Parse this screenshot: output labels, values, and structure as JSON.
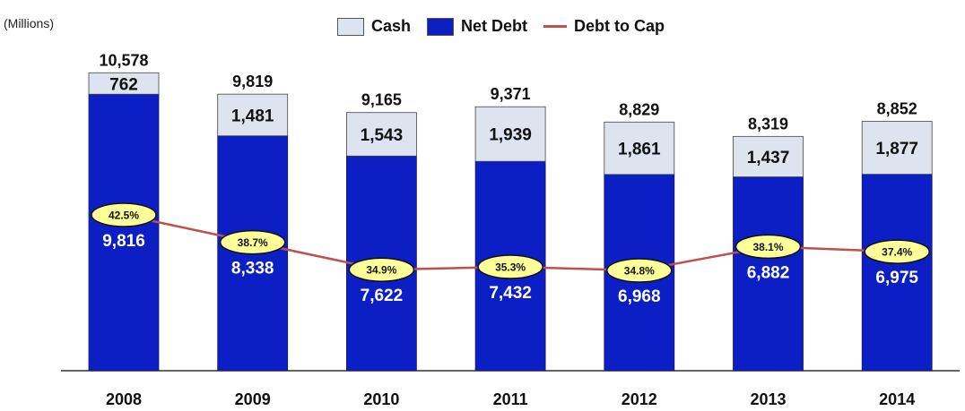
{
  "units_label": "(Millions)",
  "legend": {
    "cash": "Cash",
    "net_debt": "Net Debt",
    "debt_to_cap": "Debt to Cap"
  },
  "colors": {
    "cash": "#dde3ef",
    "net_debt": "#0b1fc4",
    "line": "#c0504d",
    "bubble": "#ffff99"
  },
  "chart_data": {
    "type": "bar",
    "stacked": true,
    "categories": [
      "2008",
      "2009",
      "2010",
      "2011",
      "2012",
      "2013",
      "2014"
    ],
    "series": [
      {
        "name": "Net Debt",
        "values": [
          9816,
          8338,
          7622,
          7432,
          6968,
          6882,
          6975
        ],
        "labels": [
          "9,816",
          "8,338",
          "7,622",
          "7,432",
          "6,968",
          "6,882",
          "6,975"
        ]
      },
      {
        "name": "Cash",
        "values": [
          762,
          1481,
          1543,
          1939,
          1861,
          1437,
          1877
        ],
        "labels": [
          "762",
          "1,481",
          "1,543",
          "1,939",
          "1,861",
          "1,437",
          "1,877"
        ]
      }
    ],
    "totals": [
      "10,578",
      "9,819",
      "9,165",
      "9,371",
      "8,829",
      "8,319",
      "8,852"
    ],
    "line_series": {
      "name": "Debt to Cap",
      "values": [
        42.5,
        38.7,
        34.9,
        35.3,
        34.8,
        38.1,
        37.4
      ],
      "labels": [
        "42.5%",
        "38.7%",
        "34.9%",
        "35.3%",
        "34.8%",
        "38.1%",
        "37.4%"
      ]
    },
    "ylim": [
      0,
      11000
    ],
    "grid": false,
    "legend_position": "top-center"
  }
}
